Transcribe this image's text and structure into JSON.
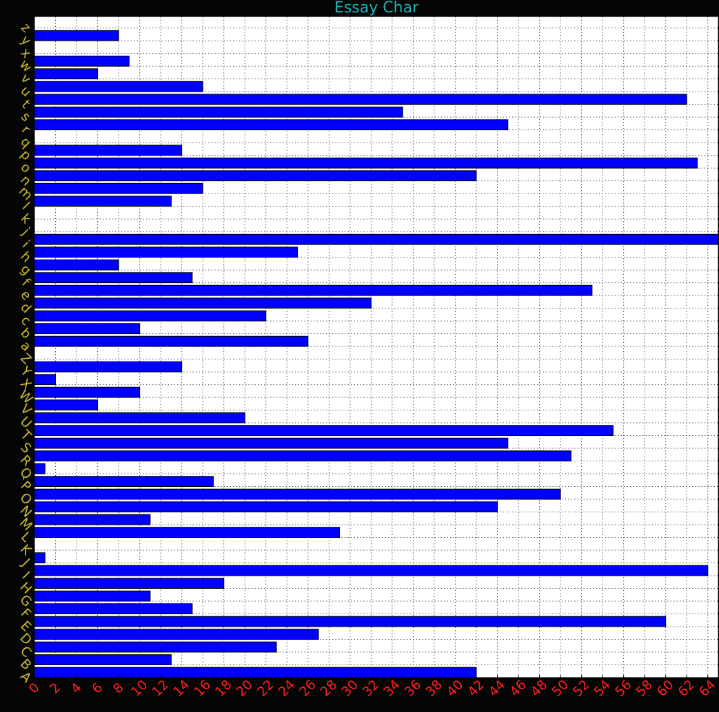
{
  "chart_data": {
    "type": "bar",
    "orientation": "horizontal",
    "title": "Essay Char",
    "xlabel": "",
    "ylabel": "",
    "xlim": [
      0,
      65
    ],
    "xticks": [
      0,
      2,
      4,
      6,
      8,
      10,
      12,
      14,
      16,
      18,
      20,
      22,
      24,
      26,
      28,
      30,
      32,
      34,
      36,
      38,
      40,
      42,
      44,
      46,
      48,
      50,
      52,
      54,
      56,
      58,
      60,
      62,
      64
    ],
    "grid": true,
    "categories": [
      "A",
      "B",
      "C",
      "D",
      "E",
      "F",
      "G",
      "H",
      "I",
      "J",
      "K",
      "L",
      "M",
      "N",
      "O",
      "P",
      "Q",
      "R",
      "S",
      "T",
      "U",
      "V",
      "W",
      "X",
      "Y",
      "Z",
      "a",
      "b",
      "c",
      "d",
      "e",
      "f",
      "g",
      "h",
      "i",
      "j",
      "k",
      "l",
      "m",
      "n",
      "o",
      "p",
      "q",
      "r",
      "s",
      "t",
      "u",
      "v",
      "w",
      "x",
      "y",
      "z"
    ],
    "values": [
      42,
      13,
      23,
      27,
      60,
      15,
      11,
      18,
      64,
      1,
      0,
      29,
      11,
      44,
      50,
      17,
      1,
      51,
      45,
      55,
      20,
      6,
      10,
      2,
      14,
      0,
      26,
      10,
      22,
      32,
      53,
      15,
      8,
      25,
      65,
      0,
      0,
      13,
      16,
      42,
      63,
      14,
      0,
      45,
      35,
      62,
      16,
      6,
      9,
      0,
      8,
      0
    ],
    "colors": {
      "bar": "#0000ff",
      "title": "#1bb5b5",
      "xtick": "#ff2020",
      "ytick": "#c8b830",
      "background": "#050505",
      "plot": "#ffffff"
    }
  }
}
